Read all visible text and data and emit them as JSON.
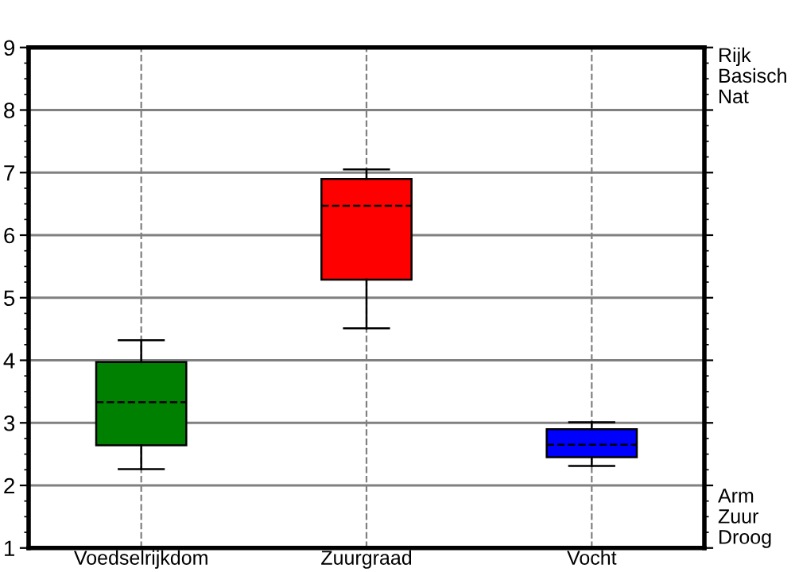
{
  "chart_data": {
    "type": "box",
    "categories": [
      "Voedselrijkdom",
      "Zuurgraad",
      "Vocht"
    ],
    "boxes": [
      {
        "low": 2.26,
        "q1": 2.64,
        "median": 3.33,
        "q3": 3.97,
        "high": 4.32
      },
      {
        "low": 4.51,
        "q1": 5.29,
        "median": 6.47,
        "q3": 6.9,
        "high": 7.05
      },
      {
        "low": 2.31,
        "q1": 2.45,
        "median": 2.65,
        "q3": 2.9,
        "high": 3.01
      }
    ],
    "colors": [
      "#008000",
      "#ff0000",
      "#0000ff"
    ],
    "ylim": [
      1,
      9
    ],
    "yticks": [
      1,
      2,
      3,
      4,
      5,
      6,
      7,
      8,
      9
    ],
    "annotations": [
      "Rijk\nBasisch\nNat",
      "Arm\nZuur\nDroog"
    ],
    "grid": true,
    "line_style": "dashed"
  }
}
